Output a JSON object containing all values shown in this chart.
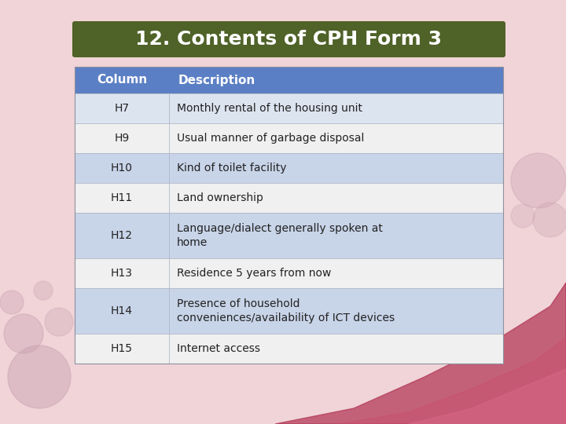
{
  "title": "12. Contents of CPH Form 3",
  "title_bg_color": "#4f6228",
  "title_text_color": "#ffffff",
  "bg_color": "#f0d4d8",
  "table_header": [
    "Column",
    "Description"
  ],
  "header_bg_color": "#5b7fc4",
  "header_text_color": "#ffffff",
  "rows": [
    [
      "H7",
      "Monthly rental of the housing unit"
    ],
    [
      "H9",
      "Usual manner of garbage disposal"
    ],
    [
      "H10",
      "Kind of toilet facility"
    ],
    [
      "H11",
      "Land ownership"
    ],
    [
      "H12",
      "Language/dialect generally spoken at\nhome"
    ],
    [
      "H13",
      "Residence 5 years from now"
    ],
    [
      "H14",
      "Presence of household\nconveniences/availability of ICT devices"
    ],
    [
      "H15",
      "Internet access"
    ]
  ],
  "row_colors": [
    "#dce4f0",
    "#f0f0f0",
    "#c8d4e8",
    "#f0f0f0",
    "#c8d4e8",
    "#f0f0f0",
    "#c8d4e8",
    "#f0f0f0"
  ],
  "tall_rows": [
    4,
    6
  ],
  "title_fontsize": 18,
  "header_fontsize": 11,
  "cell_fontsize": 10,
  "text_color": "#222222"
}
